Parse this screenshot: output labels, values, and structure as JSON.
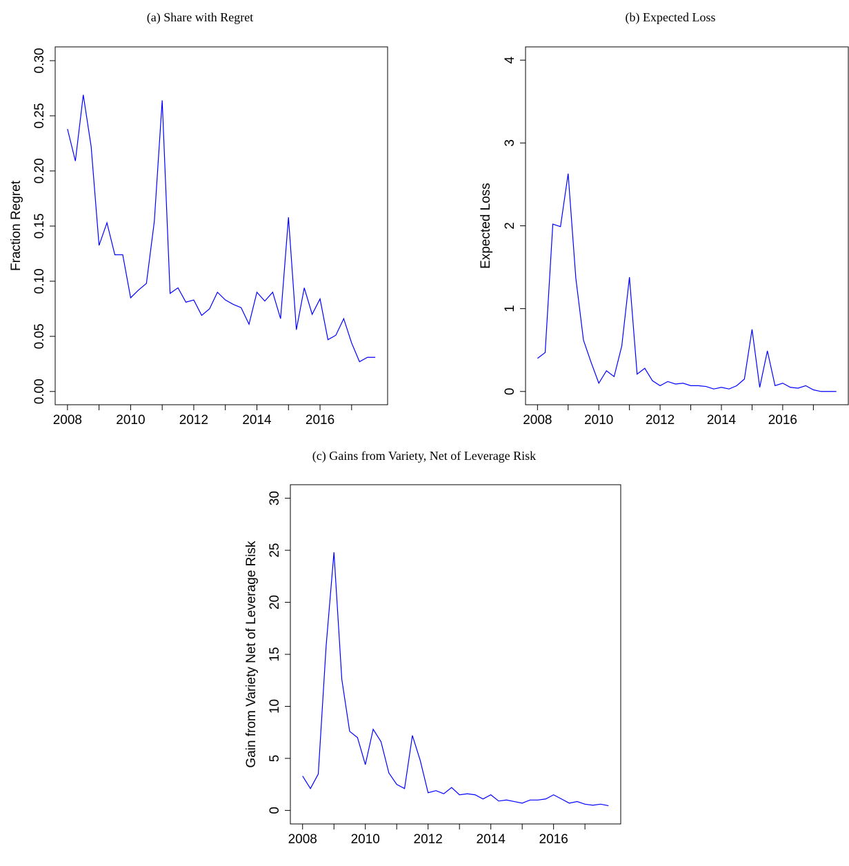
{
  "chart_data": [
    {
      "type": "line",
      "title": "(a) Share with Regret",
      "y_label": "Fraction Regret",
      "x": [
        2008,
        2008.25,
        2008.5,
        2008.75,
        2009,
        2009.25,
        2009.5,
        2009.75,
        2010,
        2010.25,
        2010.5,
        2010.75,
        2011,
        2011.25,
        2011.5,
        2011.75,
        2012,
        2012.25,
        2012.5,
        2012.75,
        2013,
        2013.25,
        2013.5,
        2013.75,
        2014,
        2014.25,
        2014.5,
        2014.75,
        2015,
        2015.25,
        2015.5,
        2015.75,
        2016,
        2016.25,
        2016.5,
        2016.75,
        2017,
        2017.25,
        2017.5,
        2017.75
      ],
      "series": [
        {
          "color": "#0000ff",
          "values": [
            0.238,
            0.209,
            0.269,
            0.222,
            0.1325,
            0.153,
            0.124,
            0.124,
            0.085,
            0.092,
            0.098,
            0.154,
            0.264,
            0.089,
            0.094,
            0.081,
            0.083,
            0.069,
            0.075,
            0.09,
            0.083,
            0.079,
            0.076,
            0.061,
            0.09,
            0.082,
            0.09,
            0.066,
            0.158,
            0.056,
            0.094,
            0.07,
            0.084,
            0.047,
            0.051,
            0.066,
            0.044,
            0.027,
            0.031,
            0.031
          ]
        }
      ],
      "xlim": [
        2007.61,
        2018.14
      ],
      "xticks": [
        2008,
        2010,
        2012,
        2014,
        2016
      ],
      "xminor_ticks": [
        2009,
        2011,
        2013,
        2015,
        2017
      ],
      "ylim": [
        -0.012,
        0.3125
      ],
      "yticks": [
        {
          "value": 0,
          "label": "0.00"
        },
        {
          "value": 0.05,
          "label": "0.05"
        },
        {
          "value": 0.1,
          "label": "0.10"
        },
        {
          "value": 0.15,
          "label": "0.15"
        },
        {
          "value": 0.2,
          "label": "0.20"
        },
        {
          "value": 0.25,
          "label": "0.25"
        },
        {
          "value": 0.3,
          "label": "0.30"
        }
      ]
    },
    {
      "type": "line",
      "title": "(b) Expected Loss",
      "y_label": "Expected Loss",
      "x": [
        2008,
        2008.25,
        2008.5,
        2008.75,
        2009,
        2009.25,
        2009.5,
        2009.75,
        2010,
        2010.25,
        2010.5,
        2010.75,
        2011,
        2011.25,
        2011.5,
        2011.75,
        2012,
        2012.25,
        2012.5,
        2012.75,
        2013,
        2013.25,
        2013.5,
        2013.75,
        2014,
        2014.25,
        2014.5,
        2014.75,
        2015,
        2015.25,
        2015.5,
        2015.75,
        2016,
        2016.25,
        2016.5,
        2016.75,
        2017,
        2017.25,
        2017.5,
        2017.75
      ],
      "series": [
        {
          "color": "#0000ff",
          "values": [
            0.4,
            0.47,
            2.02,
            1.99,
            2.63,
            1.37,
            0.62,
            0.35,
            0.1,
            0.25,
            0.18,
            0.55,
            1.38,
            0.21,
            0.28,
            0.13,
            0.07,
            0.12,
            0.09,
            0.1,
            0.07,
            0.07,
            0.06,
            0.03,
            0.05,
            0.03,
            0.07,
            0.15,
            0.75,
            0.05,
            0.49,
            0.07,
            0.1,
            0.05,
            0.04,
            0.07,
            0.02,
            0,
            0,
            0
          ]
        }
      ],
      "xlim": [
        2007.61,
        2018.14
      ],
      "xticks": [
        2008,
        2010,
        2012,
        2014,
        2016
      ],
      "xminor_ticks": [
        2009,
        2011,
        2013,
        2015,
        2017
      ],
      "ylim": [
        -0.16,
        4.16
      ],
      "yticks": [
        0,
        1,
        2,
        3,
        4
      ]
    },
    {
      "type": "line",
      "title": "(c) Gains from Variety, Net of Leverage Risk",
      "y_label": "Gain from Variety Net of Leverage Risk",
      "x": [
        2008,
        2008.25,
        2008.5,
        2008.75,
        2009,
        2009.25,
        2009.5,
        2009.75,
        2010,
        2010.25,
        2010.5,
        2010.75,
        2011,
        2011.25,
        2011.5,
        2011.75,
        2012,
        2012.25,
        2012.5,
        2012.75,
        2013,
        2013.25,
        2013.5,
        2013.75,
        2014,
        2014.25,
        2014.5,
        2014.75,
        2015,
        2015.25,
        2015.5,
        2015.75,
        2016,
        2016.25,
        2016.5,
        2016.75,
        2017,
        2017.25,
        2017.5,
        2017.75
      ],
      "series": [
        {
          "color": "#0000ff",
          "values": [
            3.3,
            2.1,
            3.5,
            15.8,
            24.8,
            12.6,
            7.6,
            7.0,
            4.4,
            7.8,
            6.6,
            3.6,
            2.5,
            2.1,
            7.2,
            4.8,
            1.7,
            1.9,
            1.6,
            2.2,
            1.5,
            1.6,
            1.5,
            1.1,
            1.5,
            0.9,
            1.0,
            0.85,
            0.7,
            1.0,
            1.0,
            1.1,
            1.5,
            1.1,
            0.7,
            0.85,
            0.6,
            0.5,
            0.6,
            0.45
          ]
        }
      ],
      "xlim": [
        2007.61,
        2018.14
      ],
      "xticks": [
        2008,
        2010,
        2012,
        2014,
        2016
      ],
      "xminor_ticks": [
        2009,
        2011,
        2013,
        2015,
        2017
      ],
      "ylim": [
        -1.3,
        31.3
      ],
      "yticks": [
        0,
        5,
        10,
        15,
        20,
        25,
        30
      ]
    }
  ]
}
